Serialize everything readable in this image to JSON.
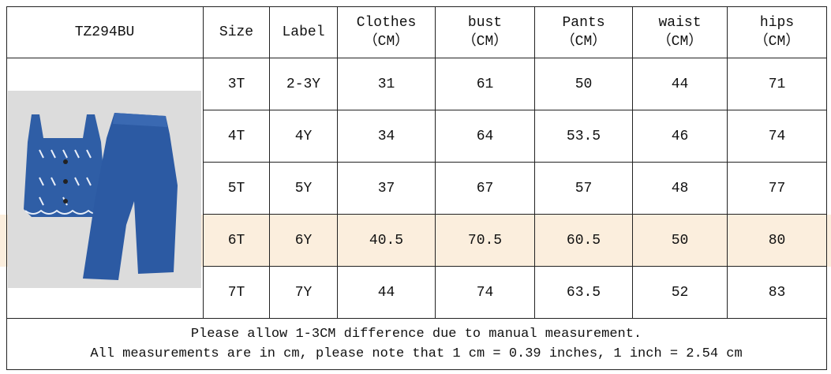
{
  "table": {
    "title": "TZ294BU",
    "columns": [
      {
        "name": "Size"
      },
      {
        "name": "Label"
      },
      {
        "name": "Clothes",
        "unit": "（CM）"
      },
      {
        "name": "bust",
        "unit": "（CM）"
      },
      {
        "name": "Pants",
        "unit": "（CM）"
      },
      {
        "name": "waist",
        "unit": "（CM）"
      },
      {
        "name": "hips",
        "unit": "（CM）"
      }
    ],
    "rows": [
      [
        "3T",
        "2-3Y",
        31,
        61,
        50,
        44,
        71
      ],
      [
        "4T",
        "4Y",
        34,
        64,
        53.5,
        46,
        74
      ],
      [
        "5T",
        "5Y",
        37,
        67,
        57,
        48,
        77
      ],
      [
        "6T",
        "6Y",
        40.5,
        70.5,
        60.5,
        50,
        80
      ],
      [
        "7T",
        "7Y",
        44,
        74,
        63.5,
        52,
        83
      ]
    ],
    "notes": [
      "Please allow 1-3CM difference due to manual measurement.",
      "All measurements are in cm, please note that 1 cm = 0.39 inches, 1 inch = 2.54 cm"
    ]
  }
}
